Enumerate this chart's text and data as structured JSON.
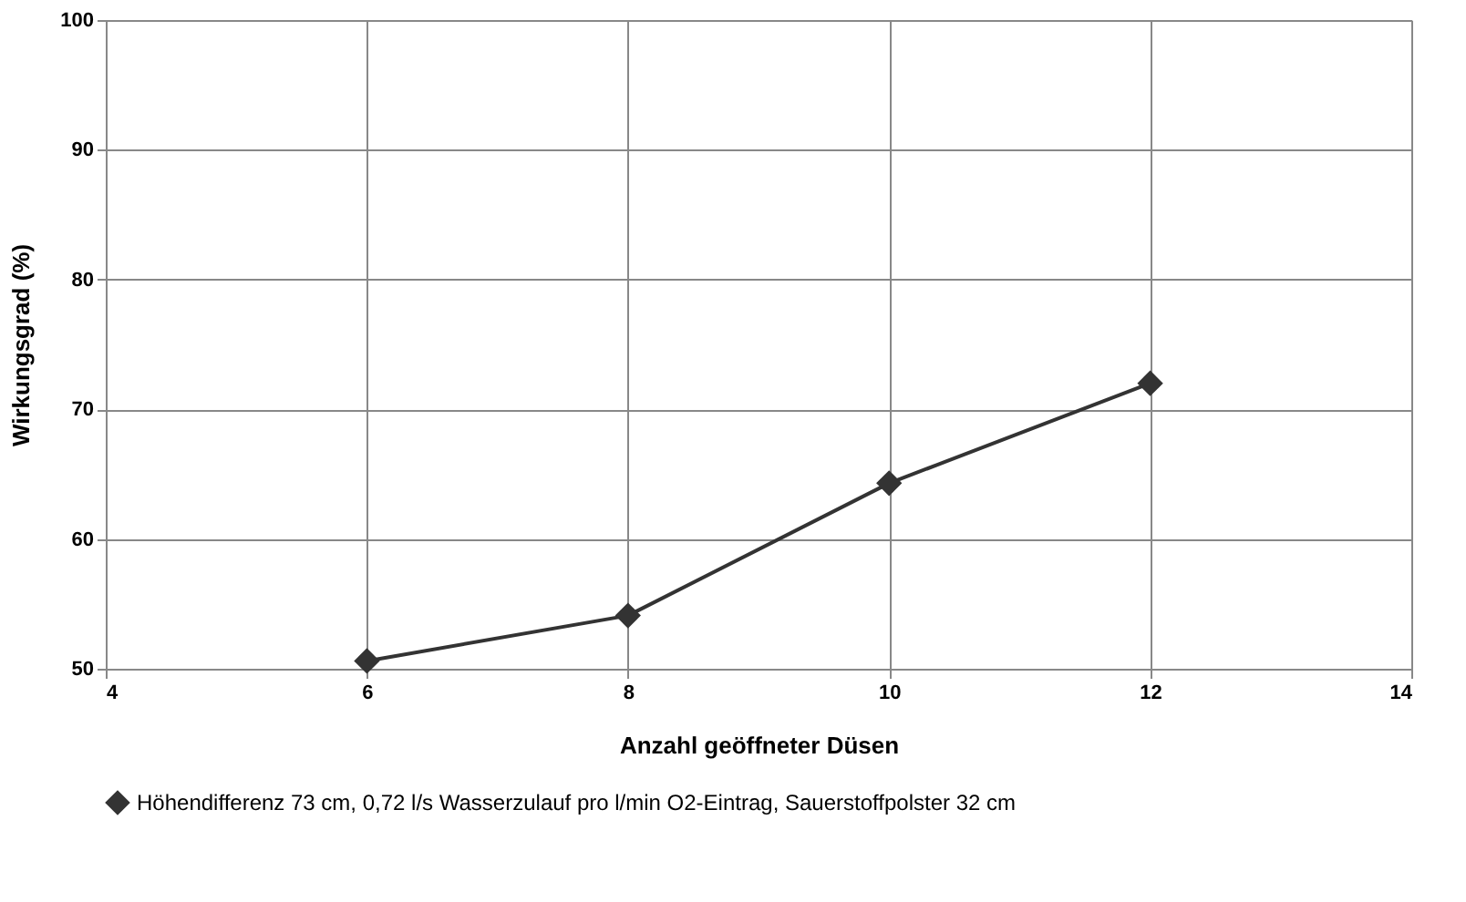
{
  "chart_data": {
    "type": "line",
    "xlabel": "Anzahl geöffneter Düsen",
    "ylabel": "Wirkungsgrad (%)",
    "x": [
      6,
      8,
      10,
      12
    ],
    "series": [
      {
        "name": "Höhendifferenz 73 cm, 0,72 l/s Wasserzulauf pro l/min O2-Eintrag, Sauerstoffpolster 32 cm",
        "color": "#333333",
        "values": [
          50.6,
          54.1,
          64.3,
          72.0
        ]
      }
    ],
    "xlim": [
      4,
      14
    ],
    "xticks": [
      4,
      6,
      8,
      10,
      12,
      14
    ],
    "ylim": [
      50,
      100
    ],
    "yticks": [
      50,
      60,
      70,
      80,
      90,
      100
    ],
    "grid": true,
    "legend": "bottom",
    "marker": "diamond",
    "line_style": "solid"
  }
}
